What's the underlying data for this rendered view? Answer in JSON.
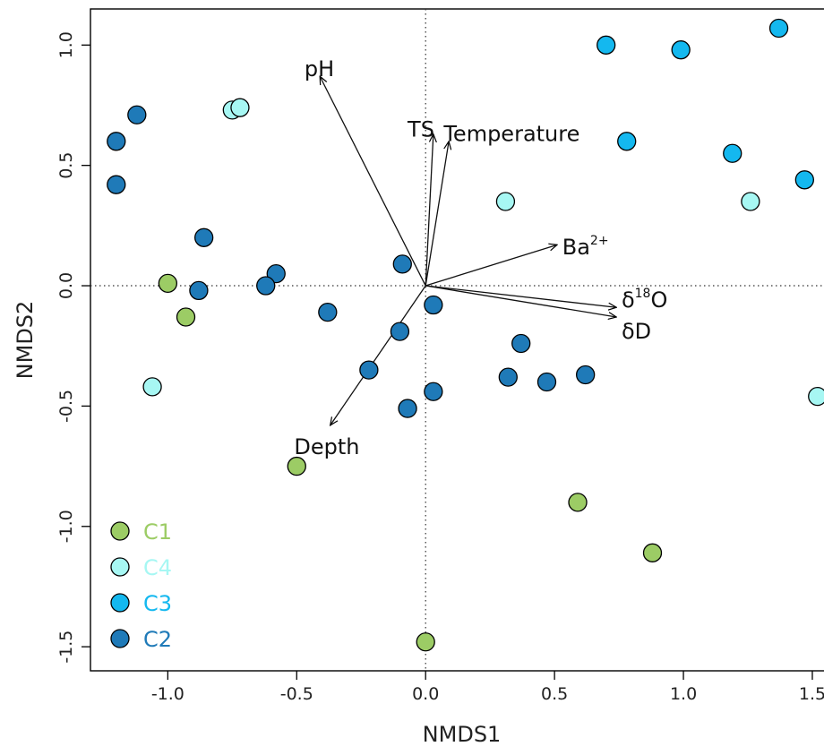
{
  "chart_data": {
    "type": "scatter",
    "xlabel": "NMDS1",
    "ylabel": "NMDS2",
    "xlim": [
      -1.3,
      1.58
    ],
    "ylim": [
      -1.6,
      1.15
    ],
    "xticks": [
      -1.0,
      -0.5,
      0.0,
      0.5,
      1.0,
      1.5
    ],
    "yticks": [
      -1.5,
      -1.0,
      -0.5,
      0.0,
      0.5,
      1.0
    ],
    "xtick_labels": [
      "-1.0",
      "-0.5",
      "0.0",
      "0.5",
      "1.0",
      "1.5"
    ],
    "ytick_labels": [
      "-1.5",
      "-1.0",
      "-0.5",
      "0.0",
      "0.5",
      "1.0"
    ],
    "reference_lines": {
      "x": 0,
      "y": 0,
      "style": "dotted"
    },
    "legend_position": "bottom-left",
    "series": [
      {
        "name": "C1",
        "color": "#9ccc65",
        "points": [
          {
            "x": -1.0,
            "y": 0.01
          },
          {
            "x": -0.93,
            "y": -0.13
          },
          {
            "x": -0.5,
            "y": -0.75
          },
          {
            "x": 0.59,
            "y": -0.9
          },
          {
            "x": 0.88,
            "y": -1.11
          },
          {
            "x": 0.0,
            "y": -1.48
          }
        ]
      },
      {
        "name": "C4",
        "color": "#a7f7f3",
        "points": [
          {
            "x": -0.75,
            "y": 0.73
          },
          {
            "x": -0.72,
            "y": 0.74
          },
          {
            "x": 0.31,
            "y": 0.35
          },
          {
            "x": 1.26,
            "y": 0.35
          },
          {
            "x": -1.06,
            "y": -0.42
          },
          {
            "x": 1.52,
            "y": -0.46
          }
        ]
      },
      {
        "name": "C3",
        "color": "#14b8ef",
        "points": [
          {
            "x": 0.7,
            "y": 1.0
          },
          {
            "x": 0.99,
            "y": 0.98
          },
          {
            "x": 1.37,
            "y": 1.07
          },
          {
            "x": 0.78,
            "y": 0.6
          },
          {
            "x": 1.19,
            "y": 0.55
          },
          {
            "x": 1.47,
            "y": 0.44
          }
        ]
      },
      {
        "name": "C2",
        "color": "#1f7ab8",
        "points": [
          {
            "x": -1.12,
            "y": 0.71
          },
          {
            "x": -1.2,
            "y": 0.6
          },
          {
            "x": -1.2,
            "y": 0.42
          },
          {
            "x": -0.86,
            "y": 0.2
          },
          {
            "x": -0.88,
            "y": -0.02
          },
          {
            "x": -0.58,
            "y": 0.05
          },
          {
            "x": -0.62,
            "y": 0.0
          },
          {
            "x": -0.38,
            "y": -0.11
          },
          {
            "x": -0.09,
            "y": 0.09
          },
          {
            "x": 0.03,
            "y": -0.08
          },
          {
            "x": -0.1,
            "y": -0.19
          },
          {
            "x": -0.22,
            "y": -0.35
          },
          {
            "x": -0.07,
            "y": -0.51
          },
          {
            "x": 0.03,
            "y": -0.44
          },
          {
            "x": 0.37,
            "y": -0.24
          },
          {
            "x": 0.32,
            "y": -0.38
          },
          {
            "x": 0.47,
            "y": -0.4
          },
          {
            "x": 0.62,
            "y": -0.37
          }
        ]
      }
    ],
    "vectors": [
      {
        "name": "pH",
        "x": -0.41,
        "y": 0.87,
        "label_x": -0.47,
        "label_y": 0.9,
        "sup": ""
      },
      {
        "name": "TS",
        "x": 0.03,
        "y": 0.63,
        "label_x": -0.07,
        "label_y": 0.65,
        "sup": ""
      },
      {
        "name": "Temperature",
        "x": 0.09,
        "y": 0.6,
        "label_x": 0.07,
        "label_y": 0.63,
        "sup": ""
      },
      {
        "name": "Ba",
        "x": 0.51,
        "y": 0.17,
        "label_x": 0.53,
        "label_y": 0.16,
        "sup": "2+"
      },
      {
        "name": "δ",
        "x": 0.74,
        "y": -0.09,
        "label_x": 0.76,
        "label_y": -0.06,
        "sup": "18",
        "tail": "O"
      },
      {
        "name": "δD",
        "x": 0.74,
        "y": -0.13,
        "label_x": 0.76,
        "label_y": -0.19,
        "sup": ""
      },
      {
        "name": "Depth",
        "x": -0.37,
        "y": -0.58,
        "label_x": -0.51,
        "label_y": -0.67,
        "sup": ""
      }
    ]
  }
}
